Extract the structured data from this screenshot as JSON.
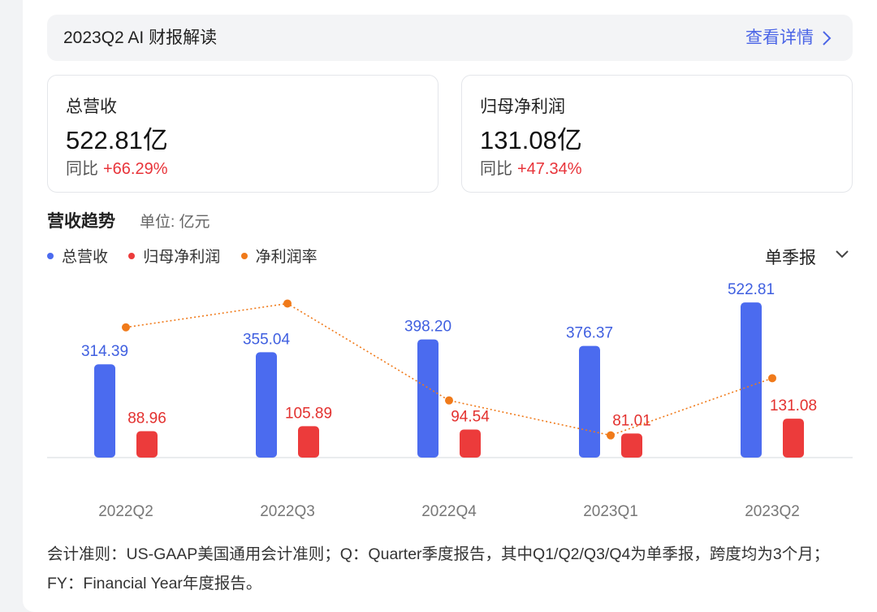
{
  "header": {
    "title": "2023Q2 AI 财报解读",
    "link_label": "查看详情"
  },
  "stats": [
    {
      "label": "总营收",
      "value": "522.81亿",
      "yoy_label": "同比",
      "yoy_value": "+66.29%"
    },
    {
      "label": "归母净利润",
      "value": "131.08亿",
      "yoy_label": "同比",
      "yoy_value": "+47.34%"
    }
  ],
  "section": {
    "title": "营收趋势",
    "unit": "单位: 亿元"
  },
  "period_select": {
    "value": "单季报"
  },
  "colors": {
    "revenue": "#4b6bef",
    "net_profit": "#ec3b3b",
    "margin": "#f07a1a",
    "positive": "#e8343a",
    "link": "#4b65e6"
  },
  "chart_data": {
    "type": "bar",
    "categories": [
      "2022Q2",
      "2022Q3",
      "2022Q4",
      "2023Q1",
      "2023Q2"
    ],
    "series": [
      {
        "name": "总营收",
        "type": "bar",
        "values": [
          314.39,
          355.04,
          398.2,
          376.37,
          522.81
        ]
      },
      {
        "name": "归母净利润",
        "type": "bar",
        "values": [
          88.96,
          105.89,
          94.54,
          81.01,
          131.08
        ]
      },
      {
        "name": "净利润率",
        "type": "line",
        "values": [
          28.3,
          29.8,
          23.7,
          21.5,
          25.1
        ]
      }
    ],
    "ylim": [
      0,
      540
    ],
    "grid": false,
    "legend": "top-left"
  },
  "footnote": "会计准则：US-GAAP美国通用会计准则；Q：Quarter季度报告，其中Q1/Q2/Q3/Q4为单季报，跨度均为3个月；FY：Financial Year年度报告。"
}
